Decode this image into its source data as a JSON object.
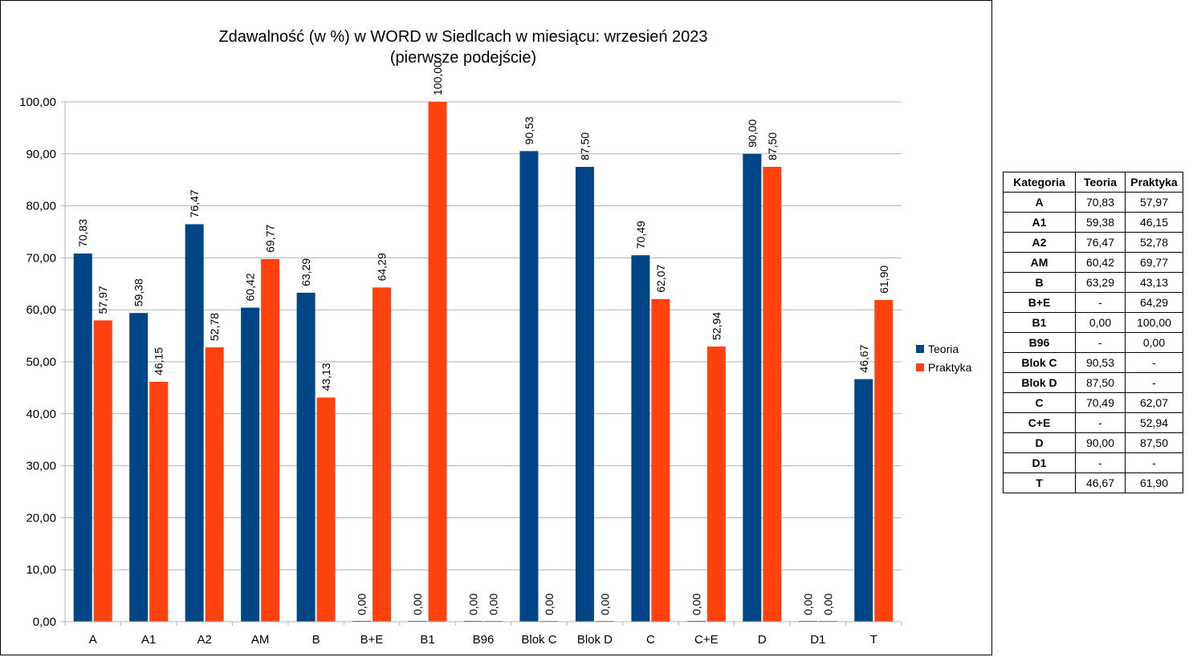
{
  "chart_data": {
    "type": "bar",
    "title": "Zdawalność (w %) w WORD w Siedlcach w miesiącu: wrzesień 2023",
    "subtitle": "(pierwsze podejście)",
    "categories": [
      "A",
      "A1",
      "A2",
      "AM",
      "B",
      "B+E",
      "B1",
      "B96",
      "Blok C",
      "Blok D",
      "C",
      "C+E",
      "D",
      "D1",
      "T"
    ],
    "series": [
      {
        "name": "Teoria",
        "color": "#004586",
        "values": [
          70.83,
          59.38,
          76.47,
          60.42,
          63.29,
          0,
          0,
          0,
          90.53,
          87.5,
          70.49,
          0,
          90,
          0,
          46.67
        ],
        "labels": [
          "70,83",
          "59,38",
          "76,47",
          "60,42",
          "63,29",
          "0,00",
          "0,00",
          "0,00",
          "90,53",
          "87,50",
          "70,49",
          "0,00",
          "90,00",
          "0,00",
          "46,67"
        ]
      },
      {
        "name": "Praktyka",
        "color": "#ff420e",
        "values": [
          57.97,
          46.15,
          52.78,
          69.77,
          43.13,
          64.29,
          100,
          0,
          0,
          0,
          62.07,
          52.94,
          87.5,
          0,
          61.9
        ],
        "labels": [
          "57,97",
          "46,15",
          "52,78",
          "69,77",
          "43,13",
          "64,29",
          "100,00",
          "0,00",
          "0,00",
          "0,00",
          "62,07",
          "52,94",
          "87,50",
          "0,00",
          "61,90"
        ]
      }
    ],
    "ylim": [
      0,
      100
    ],
    "yticks": [
      "0,00",
      "10,00",
      "20,00",
      "30,00",
      "40,00",
      "50,00",
      "60,00",
      "70,00",
      "80,00",
      "90,00",
      "100,00"
    ],
    "grid": true,
    "legend_placement": "right"
  },
  "table": {
    "headers": [
      "Kategoria",
      "Teoria",
      "Praktyka"
    ],
    "rows": [
      [
        "A",
        "70,83",
        "57,97"
      ],
      [
        "A1",
        "59,38",
        "46,15"
      ],
      [
        "A2",
        "76,47",
        "52,78"
      ],
      [
        "AM",
        "60,42",
        "69,77"
      ],
      [
        "B",
        "63,29",
        "43,13"
      ],
      [
        "B+E",
        "-",
        "64,29"
      ],
      [
        "B1",
        "0,00",
        "100,00"
      ],
      [
        "B96",
        "-",
        "0,00"
      ],
      [
        "Blok C",
        "90,53",
        "-"
      ],
      [
        "Blok D",
        "87,50",
        "-"
      ],
      [
        "C",
        "70,49",
        "62,07"
      ],
      [
        "C+E",
        "-",
        "52,94"
      ],
      [
        "D",
        "90,00",
        "87,50"
      ],
      [
        "D1",
        "-",
        "-"
      ],
      [
        "T",
        "46,67",
        "61,90"
      ]
    ]
  }
}
